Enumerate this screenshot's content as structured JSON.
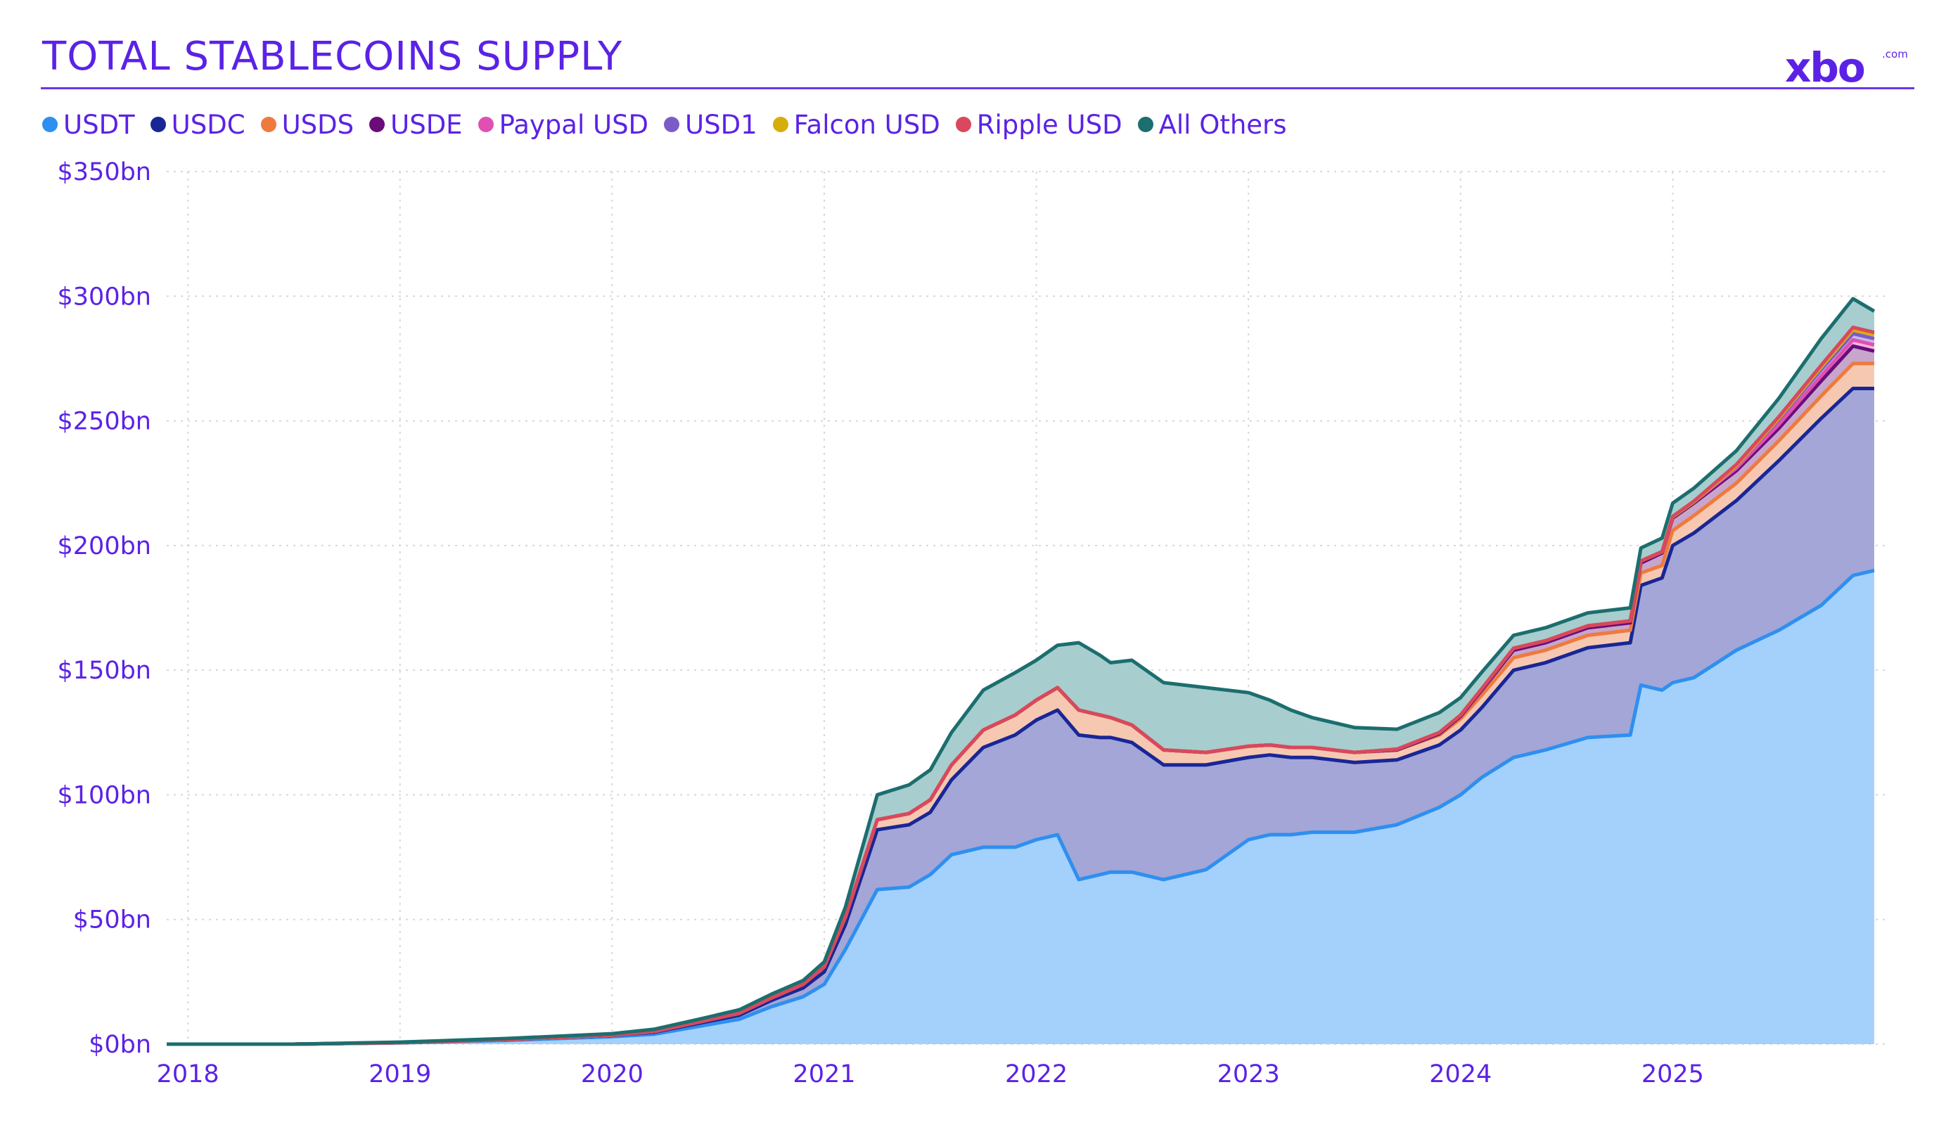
{
  "page": {
    "logo": "xbo",
    "logo_suffix": ".com"
  },
  "colors": {
    "accent": "#5b22e6",
    "grid": "#d7d7de"
  },
  "chart_data": {
    "type": "area",
    "stacked": true,
    "title": "TOTAL STABLECOINS SUPPLY",
    "xlabel": "",
    "ylabel": "",
    "ylim": [
      0,
      350
    ],
    "yticks": [
      0,
      50,
      100,
      150,
      200,
      250,
      300,
      350
    ],
    "ytick_labels": [
      "$0bn",
      "$50bn",
      "$100bn",
      "$150bn",
      "$200bn",
      "$250bn",
      "$300bn",
      "$350bn"
    ],
    "xlim": [
      2017.9,
      2026.0
    ],
    "xticks": [
      2018,
      2019,
      2020,
      2021,
      2022,
      2023,
      2024,
      2025
    ],
    "xtick_labels": [
      "2018",
      "2019",
      "2020",
      "2021",
      "2022",
      "2023",
      "2024",
      "2025"
    ],
    "legend_position": "top-left",
    "grid": true,
    "x": [
      2017.9,
      2018.5,
      2019.0,
      2019.5,
      2020.0,
      2020.2,
      2020.4,
      2020.6,
      2020.75,
      2020.9,
      2021.0,
      2021.1,
      2021.25,
      2021.4,
      2021.5,
      2021.6,
      2021.75,
      2021.9,
      2022.0,
      2022.1,
      2022.2,
      2022.3,
      2022.35,
      2022.45,
      2022.6,
      2022.8,
      2023.0,
      2023.1,
      2023.2,
      2023.3,
      2023.5,
      2023.7,
      2023.9,
      2024.0,
      2024.1,
      2024.25,
      2024.4,
      2024.6,
      2024.8,
      2024.85,
      2024.95,
      2025.0,
      2025.1,
      2025.3,
      2025.5,
      2025.7,
      2025.85,
      2025.95
    ],
    "series": [
      {
        "name": "USDT",
        "color": "#2e8ff0",
        "fill": "#a3d1fc",
        "values": [
          0,
          0,
          0.5,
          1.5,
          3,
          4,
          7,
          10,
          15,
          19,
          24,
          38,
          62,
          63,
          68,
          76,
          79,
          79,
          82,
          84,
          66,
          68,
          69,
          69,
          66,
          70,
          82,
          84,
          84,
          85,
          85,
          88,
          95,
          100,
          107,
          115,
          118,
          123,
          124,
          144,
          142,
          145,
          147,
          158,
          166,
          176,
          188,
          190
        ]
      },
      {
        "name": "USDC",
        "color": "#182696",
        "fill": "#a3a6d6",
        "values": [
          0,
          0,
          0.1,
          0.3,
          0.5,
          0.8,
          1.2,
          1.6,
          2.5,
          3.5,
          5,
          10,
          24,
          25,
          25,
          30,
          40,
          45,
          48,
          50,
          58,
          55,
          54,
          52,
          46,
          42,
          33,
          32,
          31,
          30,
          28,
          26,
          25,
          26,
          28,
          35,
          35,
          36,
          37,
          40,
          45,
          55,
          58,
          60,
          68,
          75,
          75,
          73
        ]
      },
      {
        "name": "USDS",
        "color": "#ef7a3d",
        "fill": "#f6c8b2",
        "values": [
          0,
          0,
          0,
          0.05,
          0.1,
          0.3,
          0.5,
          0.8,
          1,
          1.5,
          2,
          3,
          4,
          4.5,
          5,
          6,
          7,
          8,
          8,
          9,
          10,
          9,
          8,
          7,
          6,
          5,
          4.5,
          4,
          4,
          4,
          4,
          4,
          4,
          4.5,
          5,
          5,
          5,
          5,
          5,
          5,
          5,
          6,
          7,
          7,
          8,
          9,
          10,
          10
        ]
      },
      {
        "name": "USDE",
        "color": "#6a0c7a",
        "fill": "#c7a6cc",
        "values": [
          0,
          0,
          0,
          0,
          0,
          0,
          0,
          0,
          0,
          0,
          0,
          0,
          0,
          0,
          0,
          0,
          0,
          0,
          0,
          0,
          0,
          0,
          0,
          0,
          0,
          0,
          0,
          0,
          0,
          0,
          0,
          0,
          0.5,
          1,
          2,
          3,
          3,
          3,
          3,
          4,
          5,
          5,
          5,
          5,
          5,
          6,
          7,
          5
        ]
      },
      {
        "name": "Paypal USD",
        "color": "#e04fb2",
        "fill": "#f3b9df",
        "values": [
          0,
          0,
          0,
          0,
          0,
          0,
          0,
          0,
          0,
          0,
          0,
          0,
          0,
          0,
          0,
          0,
          0,
          0,
          0,
          0,
          0,
          0,
          0,
          0,
          0,
          0,
          0,
          0,
          0,
          0,
          0,
          0.3,
          0.5,
          0.5,
          0.6,
          0.8,
          0.8,
          0.8,
          0.8,
          0.8,
          0.5,
          0.5,
          0.5,
          1,
          1.5,
          2,
          2.5,
          2.5
        ]
      },
      {
        "name": "USD1",
        "color": "#7a5cc8",
        "fill": "#c6b8ea",
        "values": [
          0,
          0,
          0,
          0,
          0,
          0,
          0,
          0,
          0,
          0,
          0,
          0,
          0,
          0,
          0,
          0,
          0,
          0,
          0,
          0,
          0,
          0,
          0,
          0,
          0,
          0,
          0,
          0,
          0,
          0,
          0,
          0,
          0,
          0,
          0,
          0,
          0,
          0,
          0,
          0,
          0,
          0,
          0,
          1,
          2,
          2.5,
          2.5,
          2.5
        ]
      },
      {
        "name": "Falcon USD",
        "color": "#d7ad0c",
        "fill": "#f0dc93",
        "values": [
          0,
          0,
          0,
          0,
          0,
          0,
          0,
          0,
          0,
          0,
          0,
          0,
          0,
          0,
          0,
          0,
          0,
          0,
          0,
          0,
          0,
          0,
          0,
          0,
          0,
          0,
          0,
          0,
          0,
          0,
          0,
          0,
          0,
          0,
          0,
          0,
          0,
          0,
          0,
          0,
          0,
          0,
          0,
          0,
          0.5,
          1,
          1.5,
          1.5
        ]
      },
      {
        "name": "Ripple USD",
        "color": "#d9485c",
        "fill": "#f1b4bd",
        "values": [
          0,
          0,
          0,
          0,
          0,
          0,
          0,
          0,
          0,
          0,
          0,
          0,
          0,
          0,
          0,
          0,
          0,
          0,
          0,
          0,
          0,
          0,
          0,
          0,
          0,
          0,
          0,
          0,
          0,
          0,
          0,
          0,
          0,
          0,
          0,
          0,
          0,
          0,
          0,
          0,
          0.1,
          0.2,
          0.3,
          0.5,
          0.6,
          0.8,
          1,
          1
        ]
      },
      {
        "name": "All Others",
        "color": "#1d6e6e",
        "fill": "#a7cdcf",
        "values": [
          0,
          0,
          0.2,
          0.4,
          0.6,
          0.9,
          1.1,
          1.4,
          1.5,
          1.5,
          2,
          4,
          10,
          11.5,
          12,
          13,
          16,
          17,
          16,
          17,
          27,
          24,
          22,
          26,
          27,
          26,
          21.5,
          18,
          15,
          12,
          10,
          8,
          8,
          7,
          6.6,
          5.2,
          5.2,
          5.2,
          5.2,
          5.2,
          5.4,
          5.3,
          5.2,
          5.5,
          7.4,
          10.7,
          11.5,
          8.5
        ]
      }
    ]
  }
}
